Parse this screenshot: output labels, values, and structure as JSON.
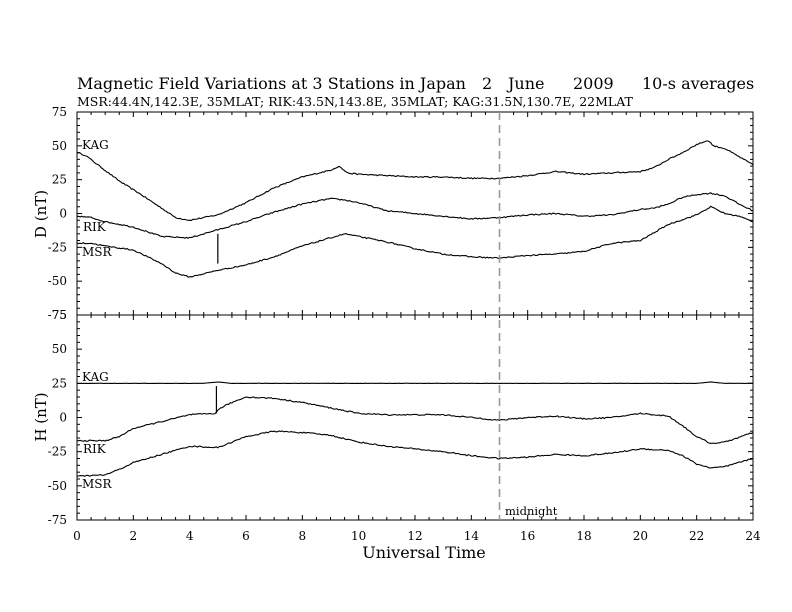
{
  "chart_data": {
    "type": "line",
    "title": {
      "main": "Magnetic Field Variations at 3 Stations in Japan",
      "day": "2",
      "month": "June",
      "year": "2009",
      "resolution": "10-s averages"
    },
    "subtitle": "MSR:44.4N,142.3E, 35MLAT;   RIK:43.5N,143.8E, 35MLAT;   KAG:31.5N,130.7E, 22MLAT",
    "xlabel": "Universal Time",
    "xlim": [
      0,
      24
    ],
    "xticks": [
      "0",
      "2",
      "4",
      "6",
      "8",
      "10",
      "12",
      "14",
      "16",
      "18",
      "20",
      "22",
      "24"
    ],
    "annotation": {
      "label": "midnight",
      "x": 15
    },
    "panels": [
      {
        "name": "D",
        "ylabel": "D (nT)",
        "ylim": [
          -75,
          75
        ],
        "yticks": [
          "75",
          "50",
          "25",
          "0",
          "-25",
          "-50",
          "-75"
        ],
        "series": [
          {
            "name": "KAG",
            "x": [
              0,
              0.3,
              0.8,
              1.5,
              2.2,
              3,
              3.5,
              4,
              5,
              6,
              7,
              8,
              9,
              9.3,
              9.6,
              10,
              11,
              12,
              13,
              14,
              15,
              16,
              17,
              18,
              19,
              20,
              20.5,
              21,
              21.5,
              22,
              22.4,
              22.6,
              23,
              23.5,
              24
            ],
            "y": [
              45,
              43,
              35,
              24,
              15,
              4,
              -3,
              -5,
              -1,
              8,
              19,
              27,
              32,
              35,
              30,
              29,
              28,
              27,
              27,
              26,
              26,
              28,
              31,
              29,
              30,
              31,
              34,
              40,
              45,
              51,
              54,
              50,
              48,
              42,
              36
            ]
          },
          {
            "name": "RIK",
            "x": [
              0,
              0.5,
              1,
              2,
              3,
              4,
              5,
              6,
              7,
              8,
              9,
              9.5,
              10,
              11,
              12,
              13,
              14,
              15,
              16,
              17,
              18,
              19,
              20,
              20.5,
              21,
              21.5,
              22,
              22.5,
              23,
              23.5,
              24
            ],
            "y": [
              -2,
              -3,
              -6,
              -10,
              -17,
              -18,
              -12,
              -6,
              1,
              7,
              11,
              10,
              8,
              2,
              0,
              -2,
              -4,
              -3,
              -1,
              0,
              -2,
              -1,
              3,
              4,
              7,
              12,
              14,
              15,
              13,
              7,
              2
            ]
          },
          {
            "name": "MSR",
            "x": [
              0,
              0.5,
              1,
              2,
              3,
              3.5,
              4,
              5,
              6,
              7,
              8,
              9,
              9.5,
              10,
              11,
              12,
              13,
              14,
              15,
              16,
              17,
              18,
              19,
              20,
              20.5,
              21,
              22,
              22.5,
              23,
              23.5,
              24
            ],
            "y": [
              -22,
              -22,
              -24,
              -27,
              -37,
              -44,
              -47,
              -42,
              -38,
              -32,
              -24,
              -18,
              -15,
              -17,
              -21,
              -26,
              -30,
              -32,
              -33,
              -31,
              -30,
              -28,
              -22,
              -20,
              -14,
              -8,
              -1,
              5,
              0,
              -2,
              -6
            ]
          }
        ]
      },
      {
        "name": "H",
        "ylabel": "H (nT)",
        "ylim": [
          -75,
          75
        ],
        "yticks": [
          "75",
          "50",
          "25",
          "0",
          "-25",
          "-50",
          "-75"
        ],
        "series": [
          {
            "name": "KAG",
            "x": [
              0,
              4.5,
              5,
              5.5,
              22,
              22.5,
              23,
              24
            ],
            "y": [
              25,
              25,
              26,
              25,
              25,
              26,
              25,
              25
            ]
          },
          {
            "name": "RIK",
            "x": [
              0,
              1,
              1.5,
              2,
              3,
              4,
              4.9,
              5.1,
              5.5,
              6,
              7,
              8,
              9,
              10,
              11,
              12,
              13,
              14,
              15,
              16,
              17,
              18,
              19,
              20,
              21,
              21.5,
              22,
              22.5,
              23,
              24
            ],
            "y": [
              -17,
              -17,
              -14,
              -8,
              -3,
              2,
              3,
              7,
              11,
              15,
              14,
              11,
              7,
              3,
              2,
              2,
              2,
              0,
              -2,
              0,
              1,
              -1,
              0,
              3,
              1,
              -6,
              -14,
              -19,
              -18,
              -11
            ]
          },
          {
            "name": "MSR",
            "x": [
              0,
              1,
              1.5,
              2,
              3,
              4,
              5,
              6,
              7,
              8,
              9,
              10,
              11,
              12,
              13,
              14,
              15,
              16,
              17,
              18,
              19,
              20,
              21,
              21.5,
              22,
              22.5,
              23,
              24
            ],
            "y": [
              -43,
              -42,
              -38,
              -33,
              -27,
              -21,
              -22,
              -14,
              -10,
              -11,
              -13,
              -18,
              -21,
              -23,
              -25,
              -28,
              -30,
              -29,
              -27,
              -28,
              -26,
              -23,
              -24,
              -28,
              -34,
              -37,
              -36,
              -30
            ]
          }
        ]
      }
    ],
    "spikes": [
      {
        "panel": "D",
        "x": 5.0,
        "from": -15,
        "to": -37
      },
      {
        "panel": "H",
        "x": 4.95,
        "from": 3,
        "to": 23
      }
    ]
  }
}
